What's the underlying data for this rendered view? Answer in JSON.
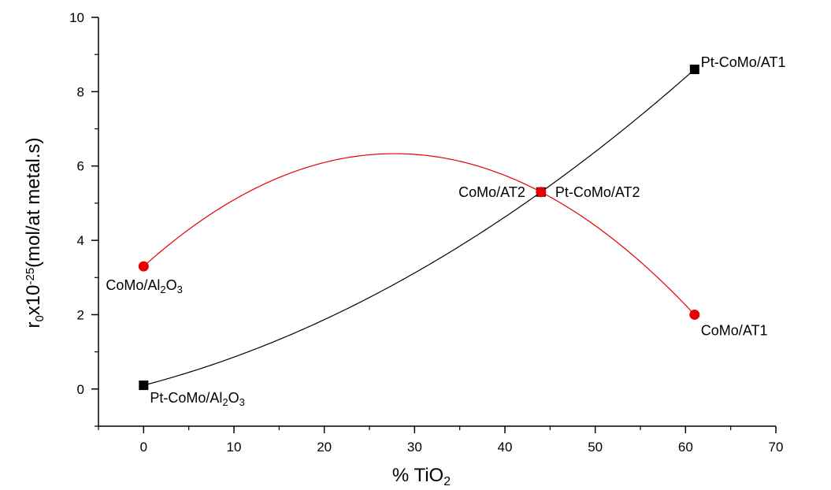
{
  "chart_data": {
    "type": "line",
    "xlabel": {
      "main": "% TiO",
      "sub": "2"
    },
    "ylabel": {
      "r": "r",
      "r_sub": "0",
      "x": "x10",
      "exp": "-25",
      "rest": "(mol/at metal.s)"
    },
    "xlim": [
      -5,
      70
    ],
    "ylim": [
      -1,
      10
    ],
    "xticks": [
      0,
      10,
      20,
      30,
      40,
      50,
      60,
      70
    ],
    "yticks": [
      0,
      2,
      4,
      6,
      8,
      10
    ],
    "grid": false,
    "series": [
      {
        "color": "#000000",
        "marker": "square",
        "points": [
          {
            "x": 0,
            "y": 0.1,
            "label": [
              [
                "Pt-CoMo/Al",
                ""
              ],
              [
                "2",
                "sub"
              ],
              [
                "O",
                ""
              ],
              [
                "3",
                "sub"
              ]
            ]
          },
          {
            "x": 44,
            "y": 5.3,
            "label": [
              [
                "Pt-CoMo/AT2",
                ""
              ]
            ]
          },
          {
            "x": 61,
            "y": 8.6,
            "label": [
              [
                "Pt-CoMo/AT1",
                ""
              ]
            ]
          }
        ]
      },
      {
        "color": "#e60000",
        "marker": "circle",
        "points": [
          {
            "x": 0,
            "y": 3.3,
            "label": [
              [
                "CoMo/Al",
                ""
              ],
              [
                "2",
                "sub"
              ],
              [
                "O",
                ""
              ],
              [
                "3",
                "sub"
              ]
            ]
          },
          {
            "x": 44,
            "y": 5.3,
            "label": [
              [
                "CoMo/AT2",
                ""
              ]
            ]
          },
          {
            "x": 61,
            "y": 2.0,
            "label": [
              [
                "CoMo/AT1",
                ""
              ]
            ]
          }
        ]
      }
    ]
  }
}
